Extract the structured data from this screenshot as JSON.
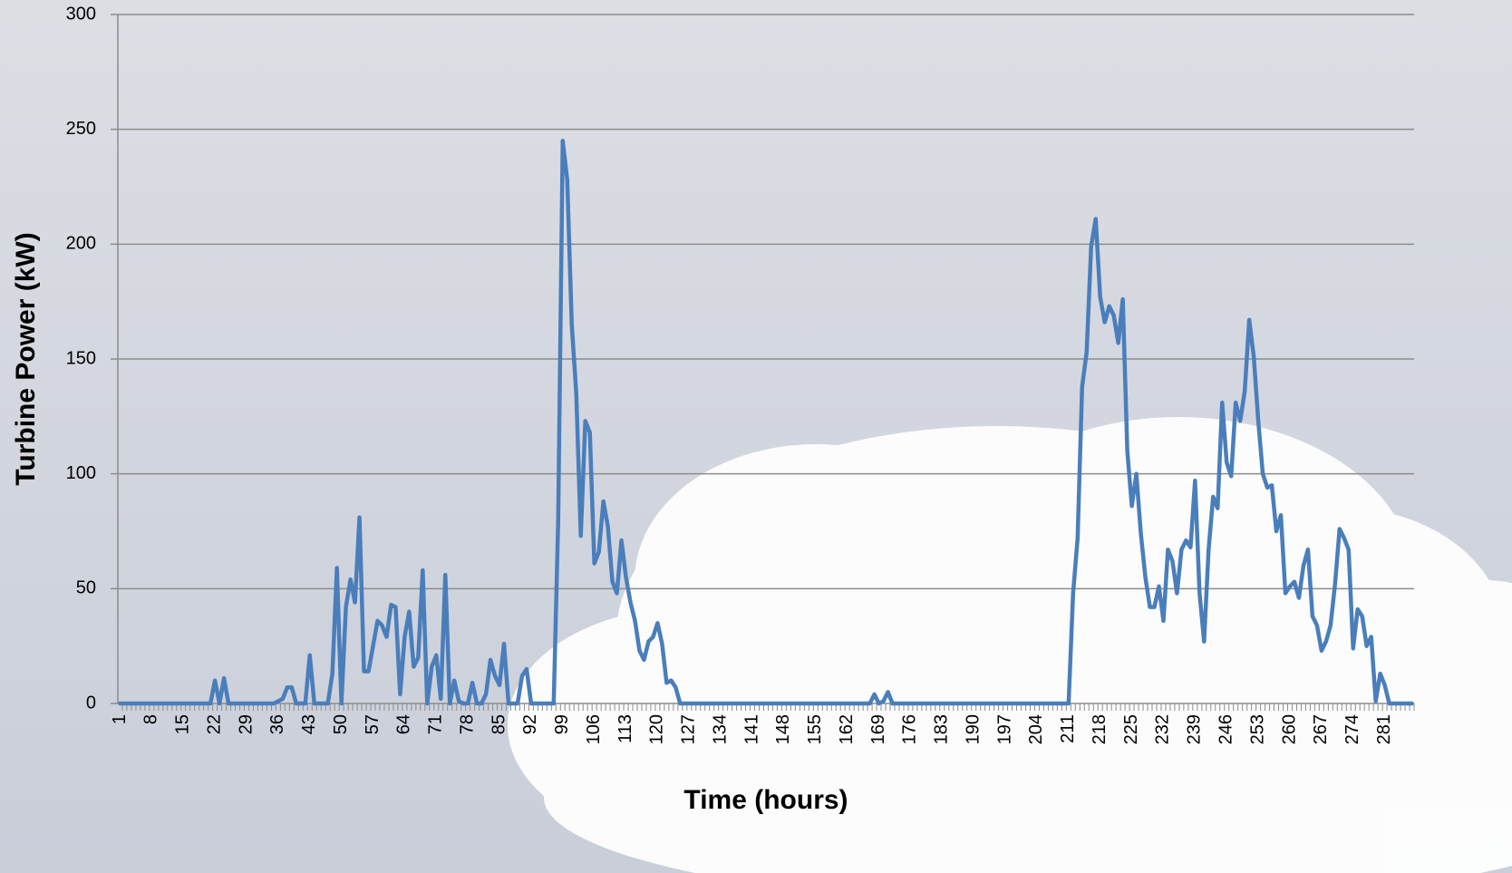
{
  "chart_data": {
    "type": "line",
    "ylabel": "Turbine Power (kW)",
    "xlabel": "Time (hours)",
    "color": "#4a7ebb",
    "grid": true,
    "ylim": [
      0,
      300
    ],
    "yticks": [
      0,
      50,
      100,
      150,
      200,
      250,
      300
    ],
    "categories": [
      "1",
      null,
      null,
      null,
      null,
      null,
      null,
      "8",
      null,
      null,
      null,
      null,
      null,
      null,
      "15",
      null,
      null,
      null,
      null,
      null,
      null,
      "22",
      null,
      null,
      null,
      null,
      null,
      null,
      "29",
      null,
      null,
      null,
      null,
      null,
      null,
      "36",
      null,
      null,
      null,
      null,
      null,
      null,
      "43",
      null,
      null,
      null,
      null,
      null,
      null,
      "50",
      null,
      null,
      null,
      null,
      null,
      null,
      "57",
      null,
      null,
      null,
      null,
      null,
      null,
      "64",
      null,
      null,
      null,
      null,
      null,
      null,
      "71",
      null,
      null,
      null,
      null,
      null,
      null,
      "78",
      null,
      null,
      null,
      null,
      null,
      null,
      "85",
      null,
      null,
      null,
      null,
      null,
      null,
      "92",
      null,
      null,
      null,
      null,
      null,
      null,
      "99",
      null,
      null,
      null,
      null,
      null,
      null,
      "106",
      null,
      null,
      null,
      null,
      null,
      null,
      "113",
      null,
      null,
      null,
      null,
      null,
      null,
      "120",
      null,
      null,
      null,
      null,
      null,
      null,
      "127",
      null,
      null,
      null,
      null,
      null,
      null,
      "134",
      null,
      null,
      null,
      null,
      null,
      null,
      "141",
      null,
      null,
      null,
      null,
      null,
      null,
      "148",
      null,
      null,
      null,
      null,
      null,
      null,
      "155",
      null,
      null,
      null,
      null,
      null,
      null,
      "162",
      null,
      null,
      null,
      null,
      null,
      null,
      "169",
      null,
      null,
      null,
      null,
      null,
      null,
      "176",
      null,
      null,
      null,
      null,
      null,
      null,
      "183",
      null,
      null,
      null,
      null,
      null,
      null,
      "190",
      null,
      null,
      null,
      null,
      null,
      null,
      "197",
      null,
      null,
      null,
      null,
      null,
      null,
      "204",
      null,
      null,
      null,
      null,
      null,
      null,
      "211",
      null,
      null,
      null,
      null,
      null,
      null,
      "218",
      null,
      null,
      null,
      null,
      null,
      null,
      "225",
      null,
      null,
      null,
      null,
      null,
      null,
      "232",
      null,
      null,
      null,
      null,
      null,
      null,
      "239",
      null,
      null,
      null,
      null,
      null,
      null,
      "246",
      null,
      null,
      null,
      null,
      null,
      null,
      "253",
      null,
      null,
      null,
      null,
      null,
      null,
      "260",
      null,
      null,
      null,
      null,
      null,
      null,
      "267",
      null,
      null,
      null,
      null,
      null,
      null,
      "274",
      null,
      null,
      null,
      null,
      null,
      null,
      "281",
      null,
      null,
      null,
      null,
      null,
      null
    ],
    "values": [
      0,
      0,
      0,
      0,
      0,
      0,
      0,
      0,
      0,
      0,
      0,
      0,
      0,
      0,
      0,
      0,
      0,
      0,
      0,
      0,
      0,
      10,
      0,
      11,
      0,
      0,
      0,
      0,
      0,
      0,
      0,
      0,
      0,
      0,
      0,
      1,
      2,
      7,
      7,
      0,
      0,
      0,
      21,
      0,
      0,
      0,
      0,
      13,
      59,
      0,
      42,
      54,
      44,
      81,
      14,
      14,
      25,
      36,
      34,
      29,
      43,
      42,
      4,
      29,
      40,
      16,
      20,
      58,
      0,
      16,
      21,
      2,
      56,
      0,
      10,
      1,
      0,
      0,
      9,
      0,
      0,
      4,
      19,
      12,
      8,
      26,
      0,
      0,
      0,
      12,
      15,
      0,
      0,
      0,
      0,
      0,
      0,
      80,
      245,
      228,
      165,
      135,
      73,
      123,
      118,
      61,
      66,
      88,
      77,
      53,
      48,
      71,
      55,
      44,
      36,
      23,
      19,
      27,
      29,
      35,
      26,
      9,
      10,
      7,
      0,
      0,
      0,
      0,
      0,
      0,
      0,
      0,
      0,
      0,
      0,
      0,
      0,
      0,
      0,
      0,
      0,
      0,
      0,
      0,
      0,
      0,
      0,
      0,
      0,
      0,
      0,
      0,
      0,
      0,
      0,
      0,
      0,
      0,
      0,
      0,
      0,
      0,
      0,
      0,
      0,
      0,
      0,
      4,
      0,
      1,
      5,
      0,
      0,
      0,
      0,
      0,
      0,
      0,
      0,
      0,
      0,
      0,
      0,
      0,
      0,
      0,
      0,
      0,
      0,
      0,
      0,
      0,
      0,
      0,
      0,
      0,
      0,
      0,
      0,
      0,
      0,
      0,
      0,
      0,
      0,
      0,
      0,
      0,
      0,
      0,
      0,
      48,
      72,
      138,
      153,
      199,
      211,
      177,
      166,
      173,
      169,
      157,
      176,
      110,
      86,
      100,
      74,
      55,
      42,
      42,
      51,
      36,
      67,
      62,
      48,
      67,
      71,
      68,
      97,
      48,
      27,
      67,
      90,
      85,
      131,
      105,
      99,
      131,
      123,
      136,
      167,
      151,
      123,
      100,
      94,
      95,
      75,
      82,
      48,
      51,
      53,
      46,
      60,
      67,
      38,
      34,
      23,
      27,
      34,
      52,
      76,
      72,
      67,
      24,
      41,
      38,
      25,
      29,
      1,
      13,
      8,
      0,
      0,
      0,
      0,
      0,
      0
    ]
  }
}
